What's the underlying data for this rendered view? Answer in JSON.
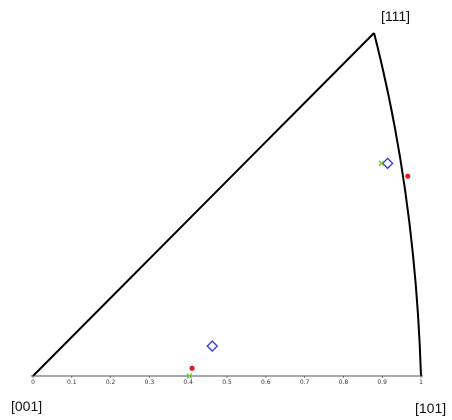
{
  "figure": {
    "type": "inverse pole figure",
    "corners": {
      "c001": "[001]",
      "c101": "[101]",
      "c111": "[111]"
    },
    "axis": {
      "ticks": [
        "0",
        "0.1",
        "0.2",
        "0.3",
        "0.4",
        "0.5",
        "0.6",
        "0.7",
        "0.8",
        "0.9",
        "1"
      ],
      "range": [
        0,
        1
      ]
    },
    "colors": {
      "outline": "#000000",
      "diamond": "#2b39e0",
      "cross": "#7ac943",
      "dot": "#e01b1b"
    },
    "markers": [
      {
        "name": "diamond-upper",
        "kind": "diamond",
        "x": 0.914,
        "y": 0.548
      },
      {
        "name": "cross-upper",
        "kind": "cross",
        "x": 0.898,
        "y": 0.548
      },
      {
        "name": "dot-upper",
        "kind": "dot",
        "x": 0.966,
        "y": 0.515
      },
      {
        "name": "diamond-lower",
        "kind": "diamond",
        "x": 0.462,
        "y": 0.077
      },
      {
        "name": "cross-lower",
        "kind": "cross",
        "x": 0.403,
        "y": 0.0
      },
      {
        "name": "dot-lower",
        "kind": "dot",
        "x": 0.41,
        "y": 0.02
      }
    ]
  }
}
